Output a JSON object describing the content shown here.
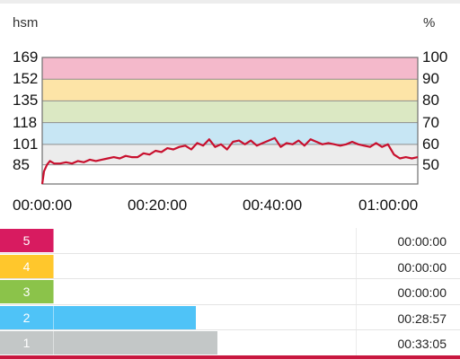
{
  "header": {
    "left_unit": "hsm",
    "right_unit": "%"
  },
  "colors": {
    "zone5": "#d81b60",
    "zone4": "#ffc72c",
    "zone3": "#8bc34a",
    "zone2": "#4fc3f7",
    "zone1": "#c3c7c7",
    "line": "#c8102e"
  },
  "chart_data": {
    "type": "line",
    "title": "",
    "xlabel": "",
    "ylabel": "hsm",
    "y2label": "%",
    "x_ticks": [
      "00:00:00",
      "00:20:00",
      "00:40:00",
      "01:00:00"
    ],
    "y_ticks_left": [
      "169",
      "152",
      "135",
      "118",
      "101",
      "85"
    ],
    "y_ticks_right": [
      "100",
      "90",
      "80",
      "70",
      "60",
      "50"
    ],
    "ylim": [
      70,
      169
    ],
    "xlim_minutes": [
      0,
      63
    ],
    "zone_bands": [
      {
        "zone": 5,
        "from": 152,
        "to": 169,
        "color": "#f4b9cb"
      },
      {
        "zone": 4,
        "from": 135,
        "to": 152,
        "color": "#fde4a7"
      },
      {
        "zone": 3,
        "from": 118,
        "to": 135,
        "color": "#dbe8c3"
      },
      {
        "zone": 2,
        "from": 101,
        "to": 118,
        "color": "#c7e6f4"
      },
      {
        "zone": 1,
        "from": 85,
        "to": 101,
        "color": "#ececec"
      }
    ],
    "series": [
      {
        "x_minutes": [
          0,
          0.3,
          0.8,
          1.3,
          2,
          3,
          4,
          5,
          6,
          7,
          8,
          9,
          10,
          11,
          12,
          13,
          14,
          15,
          16,
          17,
          18,
          19,
          20,
          21,
          22,
          23,
          24,
          25,
          26,
          27,
          28,
          29,
          30,
          31,
          32,
          33,
          34,
          35,
          36,
          37,
          38,
          39,
          40,
          41,
          42,
          43,
          44,
          45,
          46,
          47,
          48,
          49,
          50,
          51,
          52,
          53,
          54,
          55,
          56,
          57,
          58,
          59,
          60,
          61,
          62,
          63
        ],
        "values": [
          70,
          80,
          85,
          88,
          86,
          86,
          87,
          86,
          88,
          87,
          89,
          88,
          89,
          90,
          91,
          90,
          92,
          91,
          91,
          94,
          93,
          96,
          95,
          98,
          97,
          99,
          100,
          97,
          102,
          100,
          105,
          99,
          101,
          97,
          103,
          104,
          101,
          104,
          100,
          102,
          104,
          106,
          99,
          102,
          101,
          104,
          100,
          105,
          103,
          101,
          102,
          101,
          100,
          101,
          103,
          101,
          100,
          99,
          102,
          99,
          101,
          93,
          90,
          91,
          90,
          91
        ]
      }
    ]
  },
  "zones": [
    {
      "number": "5",
      "time": "00:00:00",
      "fraction": 0
    },
    {
      "number": "4",
      "time": "00:00:00",
      "fraction": 0
    },
    {
      "number": "3",
      "time": "00:00:00",
      "fraction": 0
    },
    {
      "number": "2",
      "time": "00:28:57",
      "fraction": 0.466
    },
    {
      "number": "1",
      "time": "00:33:05",
      "fraction": 0.534
    }
  ]
}
